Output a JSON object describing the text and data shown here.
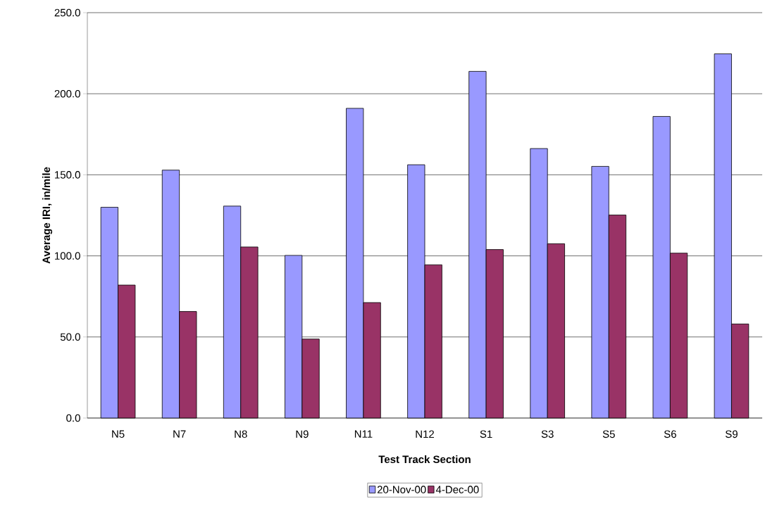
{
  "chart_data": {
    "type": "bar",
    "xlabel": "Test Track Section",
    "ylabel": "Average IRI, in/mile",
    "categories": [
      "N5",
      "N7",
      "N8",
      "N9",
      "N11",
      "N12",
      "S1",
      "S3",
      "S5",
      "S6",
      "S9"
    ],
    "series": [
      {
        "name": "20-Nov-00",
        "color": "#9999ff",
        "values": [
          130.0,
          152.9,
          130.7,
          100.3,
          191.0,
          156.2,
          213.8,
          166.2,
          155.2,
          186.0,
          224.6
        ]
      },
      {
        "name": "4-Dec-00",
        "color": "#993366",
        "values": [
          82.0,
          65.7,
          105.5,
          48.7,
          71.2,
          94.5,
          103.9,
          107.5,
          125.2,
          101.7,
          58.0
        ]
      }
    ],
    "ylim": [
      0,
      250
    ],
    "yticks": [
      {
        "value": 0,
        "label": "0.0"
      },
      {
        "value": 50,
        "label": "50.0"
      },
      {
        "value": 100,
        "label": "100.0"
      },
      {
        "value": 150,
        "label": "150.0"
      },
      {
        "value": 200,
        "label": "200.0"
      },
      {
        "value": 250,
        "label": "250.0"
      }
    ],
    "grid": "y",
    "legend": "bottom"
  }
}
